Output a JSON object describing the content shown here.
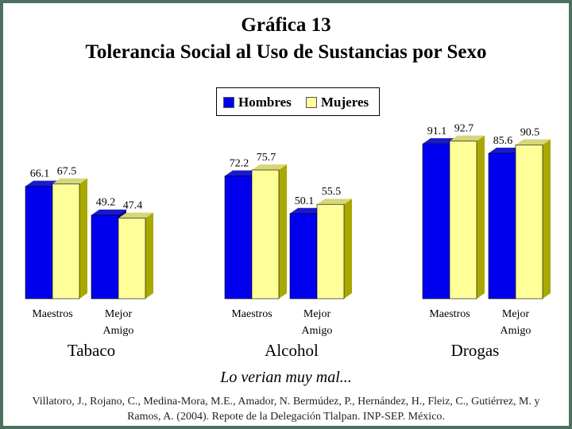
{
  "title_line1": "Gráfica 13",
  "title_line2": "Tolerancia Social al Uso de Sustancias por Sexo",
  "legend": {
    "hombres": "Hombres",
    "mujeres": "Mujeres"
  },
  "subtitle": "Lo verian muy mal...",
  "source": "Villatoro, J., Rojano, C., Medina-Mora, M.E., Amador, N. Bermúdez, P., Hernández, H., Fleiz, C., Gutiérrez, M. y Ramos, A. (2004). Repote de la Delegación Tlalpan. INP-SEP. México.",
  "colors": {
    "hombres": "#0000ee",
    "mujeres": "#ffff99",
    "background": "#4d7160"
  },
  "chart_data": {
    "type": "bar",
    "title": "Gráfica 13 Tolerancia Social al Uso de Sustancias por Sexo",
    "groups": [
      "Tabaco",
      "Alcohol",
      "Drogas"
    ],
    "categories": [
      "Maestros",
      "Mejor Amigo",
      "Maestros",
      "Mejor Amigo",
      "Maestros",
      "Mejor Amigo"
    ],
    "category_lines": [
      [
        "Maestros"
      ],
      [
        "Mejor",
        "Amigo"
      ],
      [
        "Maestros"
      ],
      [
        "Mejor",
        "Amigo"
      ],
      [
        "Maestros"
      ],
      [
        "Mejor",
        "Amigo"
      ]
    ],
    "series": [
      {
        "name": "Hombres",
        "values": [
          66.1,
          49.2,
          72.2,
          50.1,
          91.1,
          85.6
        ],
        "labels": [
          "66.1",
          "49.2",
          "72.2",
          "50.1",
          "91.1",
          "85.6"
        ]
      },
      {
        "name": "Mujeres",
        "values": [
          67.5,
          47.4,
          75.7,
          55.5,
          92.7,
          90.5
        ],
        "labels": [
          "67.5",
          "47.4",
          "75.7",
          "55.5",
          "92.7",
          "90.5"
        ]
      }
    ],
    "legend": "top",
    "grid": false,
    "ylim": [
      0,
      100
    ]
  }
}
